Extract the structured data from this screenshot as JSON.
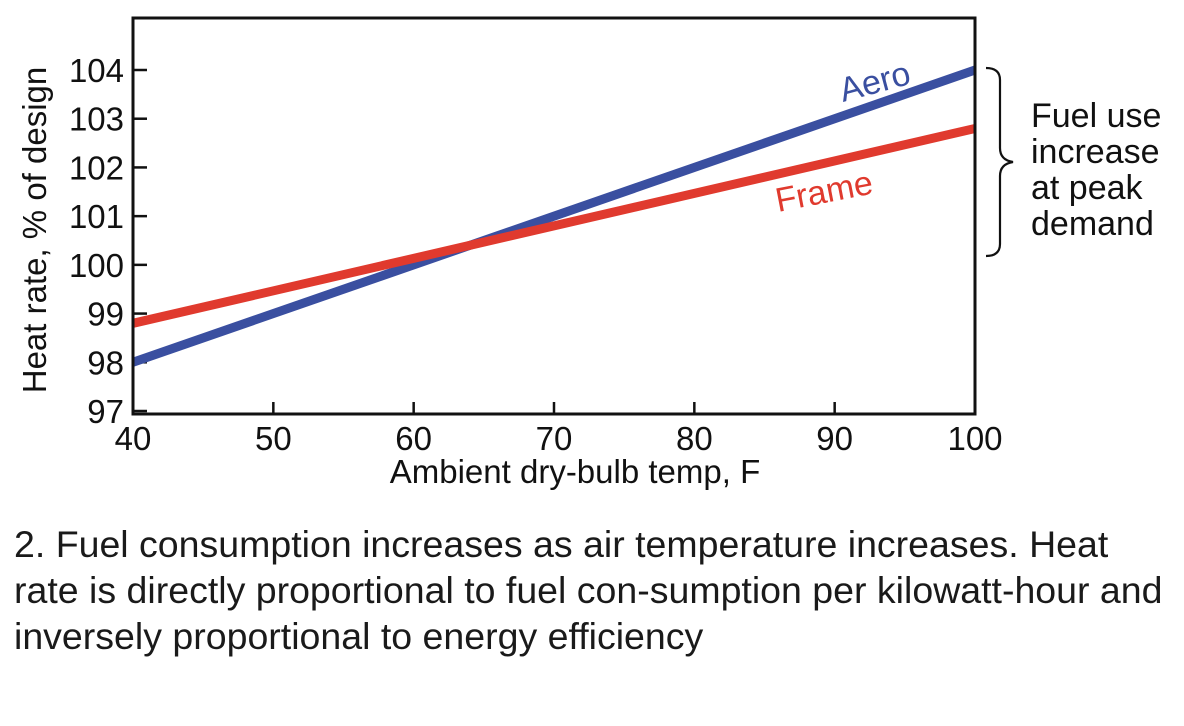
{
  "chart_data": {
    "type": "line",
    "xlabel": "Ambient dry-bulb temp, F",
    "ylabel": "Heat rate, % of design",
    "xlim": [
      40,
      100
    ],
    "ylim": [
      97,
      105
    ],
    "x_ticks": [
      "40",
      "50",
      "60",
      "70",
      "80",
      "90",
      "100"
    ],
    "y_ticks": [
      "97",
      "98",
      "99",
      "100",
      "101",
      "102",
      "103",
      "104"
    ],
    "series": [
      {
        "name": "Aero",
        "color": "#3a4fa0",
        "x": [
          40,
          100
        ],
        "y": [
          98.0,
          104.0
        ]
      },
      {
        "name": "Frame",
        "color": "#e03a2e",
        "x": [
          40,
          100
        ],
        "y": [
          98.8,
          102.8
        ]
      }
    ],
    "annotation": {
      "lines": [
        "Fuel use",
        "increase",
        "at peak",
        "demand"
      ]
    }
  },
  "caption": "2. Fuel consumption increases as air temperature increases. Heat rate is directly proportional to fuel con-sumption per kilowatt-hour and inversely proportional to energy efficiency"
}
